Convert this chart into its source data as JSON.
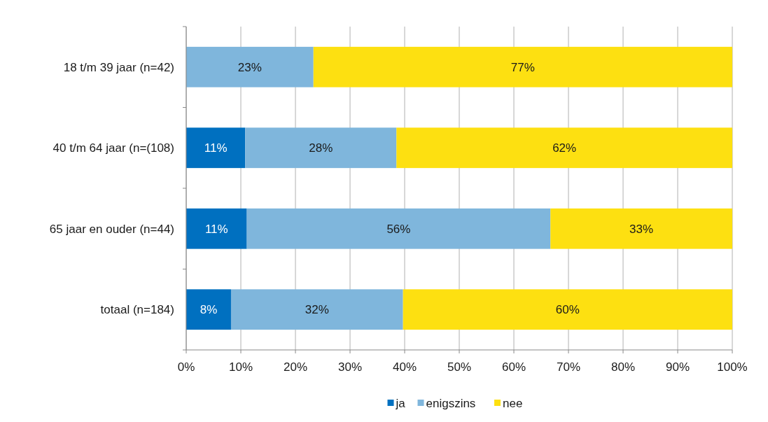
{
  "chart_data": {
    "type": "bar",
    "orientation": "horizontal",
    "stacked": true,
    "categories": [
      "18 t/m 39 jaar (n=42)",
      "40 t/m 64 jaar (n=(108)",
      "65 jaar en ouder (n=44)",
      "totaal (n=184)"
    ],
    "series": [
      {
        "name": "ja",
        "color": "#0070c0",
        "values": [
          0,
          10.8,
          11.1,
          8.2
        ],
        "value_labels": [
          null,
          "11%",
          "11%",
          "8%"
        ]
      },
      {
        "name": "enigszins",
        "color": "#7fb6dc",
        "values": [
          23.3,
          27.7,
          55.6,
          31.5
        ],
        "value_labels": [
          "23%",
          "28%",
          "56%",
          "32%"
        ]
      },
      {
        "name": "nee",
        "color": "#fde011",
        "values": [
          76.7,
          61.5,
          33.3,
          60.3
        ],
        "value_labels": [
          "77%",
          "62%",
          "33%",
          "60%"
        ]
      }
    ],
    "xlim": [
      0,
      100
    ],
    "xticks": [
      {
        "value": 0,
        "label": "0%"
      },
      {
        "value": 10,
        "label": "10%"
      },
      {
        "value": 20,
        "label": "20%"
      },
      {
        "value": 30,
        "label": "30%"
      },
      {
        "value": 40,
        "label": "40%"
      },
      {
        "value": 50,
        "label": "50%"
      },
      {
        "value": 60,
        "label": "60%"
      },
      {
        "value": 70,
        "label": "70%"
      },
      {
        "value": 80,
        "label": "80%"
      },
      {
        "value": 90,
        "label": "90%"
      },
      {
        "value": 100,
        "label": "100%"
      }
    ],
    "grid": "x",
    "legend": "bottom"
  }
}
